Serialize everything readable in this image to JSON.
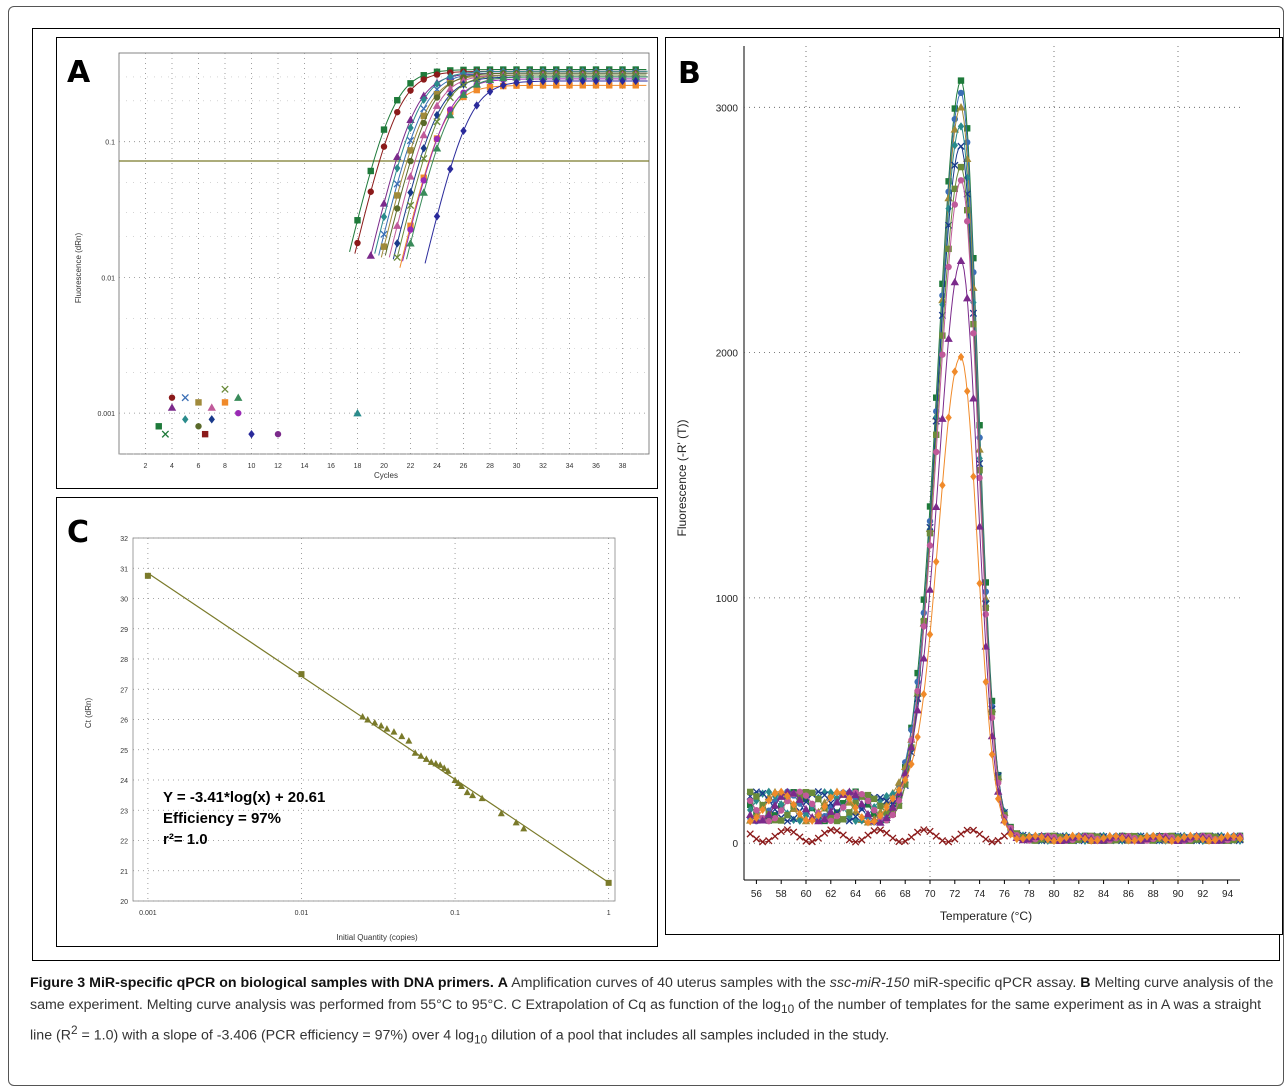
{
  "caption": {
    "figure_title": "Figure 3 MiR-specific qPCR on biological samples with DNA primers",
    "label_A": "A",
    "text_A1": "Amplification curves of 40 uterus samples with the ",
    "text_A_italic": "ssc-miR-150",
    "text_A2": " miR-specific qPCR assay.",
    "label_B": "B",
    "text_B": "Melting curve analysis of the same experiment. Melting curve analysis was performed from 55°C to 95°C. C Extrapolation of Cq as function of the log",
    "sub_10a": "10",
    "text_C1": " of the number of templates for the same experiment as in A was a straight line (R",
    "sup_2": "2",
    "text_C2": " = 1.0) with a slope of -3.406 (PCR efficiency = 97%) over 4 log",
    "sub_10b": "10",
    "text_C3": " dilution of a pool that includes all samples included in the study."
  },
  "chart_data": [
    {
      "panel": "A",
      "type": "line",
      "xlabel": "Cycles",
      "ylabel": "Fluorescence (dRn)",
      "x_ticks": [
        2,
        4,
        6,
        8,
        10,
        12,
        14,
        16,
        18,
        20,
        22,
        24,
        26,
        28,
        30,
        32,
        34,
        36,
        38
      ],
      "y_ticks": [
        "0.1",
        "0.01",
        "0.001"
      ],
      "xlim": [
        0,
        40
      ],
      "y_scale": "log",
      "ylim": [
        0.0005,
        0.45
      ],
      "threshold": 0.072,
      "series": [
        {
          "color": "#1e7a3a",
          "midpoint": 20.6,
          "plateau": 0.34
        },
        {
          "color": "#8b1a1a",
          "midpoint": 21.0,
          "plateau": 0.33
        },
        {
          "color": "#7b2a8b",
          "midpoint": 22.2,
          "plateau": 0.32
        },
        {
          "color": "#2a8b8b",
          "midpoint": 22.5,
          "plateau": 0.33
        },
        {
          "color": "#3b6fb5",
          "midpoint": 22.8,
          "plateau": 0.32
        },
        {
          "color": "#a08a3a",
          "midpoint": 23.0,
          "plateau": 0.31
        },
        {
          "color": "#5a6a2a",
          "midpoint": 23.3,
          "plateau": 0.32
        },
        {
          "color": "#c05a9a",
          "midpoint": 23.6,
          "plateau": 0.31
        },
        {
          "color": "#1a3a8b",
          "midpoint": 23.9,
          "plateau": 0.3
        },
        {
          "color": "#6a8b3a",
          "midpoint": 24.2,
          "plateau": 0.31
        },
        {
          "color": "#f08a2a",
          "midpoint": 24.4,
          "plateau": 0.26
        },
        {
          "color": "#9a2ab5",
          "midpoint": 24.6,
          "plateau": 0.29
        },
        {
          "color": "#3a8b5a",
          "midpoint": 24.9,
          "plateau": 0.3
        },
        {
          "color": "#2a2a9b",
          "midpoint": 26.3,
          "plateau": 0.28
        }
      ]
    },
    {
      "panel": "B",
      "type": "line",
      "xlabel": "Temperature (°C)",
      "ylabel": "Fluorescence (-R' (T))",
      "x_ticks": [
        56,
        58,
        60,
        62,
        64,
        66,
        68,
        70,
        72,
        74,
        76,
        78,
        80,
        82,
        84,
        86,
        88,
        90,
        92,
        94
      ],
      "y_ticks": [
        0,
        1000,
        2000,
        3000
      ],
      "xlim": [
        55,
        95
      ],
      "ylim": [
        -150,
        3250
      ],
      "series": [
        {
          "color": "#1e7a3a",
          "peak": 3050
        },
        {
          "color": "#3b6fb5",
          "peak": 2980
        },
        {
          "color": "#a08a3a",
          "peak": 2920
        },
        {
          "color": "#2a8b8b",
          "peak": 2860
        },
        {
          "color": "#1a3a8b",
          "peak": 2800
        },
        {
          "color": "#6a8b3a",
          "peak": 2720
        },
        {
          "color": "#c05a9a",
          "peak": 2650
        },
        {
          "color": "#7b2a8b",
          "peak": 2300
        },
        {
          "color": "#f08a2a",
          "peak": 1900
        },
        {
          "color": "#8b1a1a",
          "peak": 0
        }
      ]
    },
    {
      "panel": "C",
      "type": "scatter",
      "xlabel": "Initial Quantity (copies)",
      "ylabel": "Ct (dRn)",
      "x_scale": "log",
      "x_ticks": [
        "0.001",
        "0.01",
        "0.1",
        "1"
      ],
      "y_ticks": [
        20,
        21,
        22,
        23,
        24,
        25,
        26,
        27,
        28,
        29,
        30,
        31,
        32
      ],
      "xlim": [
        0.001,
        1
      ],
      "ylim": [
        20,
        32
      ],
      "fit": {
        "slope": -3.41,
        "intercept": 20.61
      },
      "points": [
        [
          0.001,
          30.75
        ],
        [
          0.01,
          27.5
        ],
        [
          0.025,
          26.1
        ],
        [
          0.027,
          26.0
        ],
        [
          0.03,
          25.9
        ],
        [
          0.033,
          25.8
        ],
        [
          0.036,
          25.7
        ],
        [
          0.04,
          25.6
        ],
        [
          0.045,
          25.45
        ],
        [
          0.05,
          25.3
        ],
        [
          0.055,
          24.9
        ],
        [
          0.06,
          24.8
        ],
        [
          0.065,
          24.7
        ],
        [
          0.07,
          24.6
        ],
        [
          0.075,
          24.55
        ],
        [
          0.08,
          24.5
        ],
        [
          0.085,
          24.4
        ],
        [
          0.09,
          24.3
        ],
        [
          0.1,
          24.0
        ],
        [
          0.105,
          23.9
        ],
        [
          0.11,
          23.8
        ],
        [
          0.12,
          23.6
        ],
        [
          0.13,
          23.5
        ],
        [
          0.15,
          23.4
        ],
        [
          0.2,
          22.9
        ],
        [
          0.25,
          22.6
        ],
        [
          0.28,
          22.4
        ],
        [
          1,
          20.6
        ]
      ],
      "annotation_lines": [
        "Y = -3.41*log(x) + 20.61",
        "Efficiency = 97%",
        "r²= 1.0"
      ]
    }
  ],
  "panel_labels": {
    "A": "A",
    "B": "B",
    "C": "C"
  }
}
